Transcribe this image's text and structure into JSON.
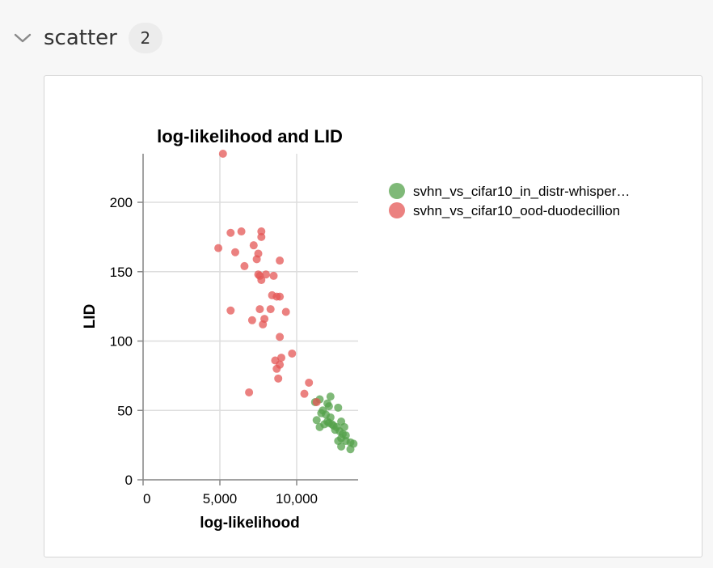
{
  "section": {
    "title": "scatter",
    "count": "2"
  },
  "chart_data": {
    "type": "scatter",
    "title": "log-likelihood and LID",
    "xlabel": "log-likelihood",
    "ylabel": "LID",
    "xlim": [
      0,
      14000
    ],
    "ylim": [
      0,
      235
    ],
    "xticks": [
      0,
      5000,
      10000
    ],
    "xtick_labels": [
      "0",
      "5,000",
      "10,000"
    ],
    "yticks": [
      0,
      50,
      100,
      150,
      200
    ],
    "ytick_labels": [
      "0",
      "50",
      "100",
      "150",
      "200"
    ],
    "grid": true,
    "legend_position": "right",
    "series": [
      {
        "name": "svhn_vs_cifar10_in_distr-whisper…",
        "color": "#54a24b",
        "points": [
          [
            11200,
            56
          ],
          [
            11500,
            58
          ],
          [
            12000,
            55
          ],
          [
            12200,
            60
          ],
          [
            11700,
            50
          ],
          [
            12100,
            53
          ],
          [
            12700,
            52
          ],
          [
            11600,
            48
          ],
          [
            11300,
            43
          ],
          [
            11800,
            40
          ],
          [
            12000,
            42
          ],
          [
            12300,
            40
          ],
          [
            12600,
            38
          ],
          [
            12900,
            42
          ],
          [
            12500,
            36
          ],
          [
            13100,
            38
          ],
          [
            12800,
            35
          ],
          [
            13000,
            33
          ],
          [
            12900,
            30
          ],
          [
            13200,
            28
          ],
          [
            12700,
            28
          ],
          [
            13500,
            27
          ],
          [
            13700,
            26
          ],
          [
            13500,
            22
          ],
          [
            12900,
            24
          ],
          [
            13200,
            32
          ],
          [
            11500,
            38
          ],
          [
            12200,
            45
          ],
          [
            11900,
            47
          ],
          [
            12100,
            41
          ],
          [
            12400,
            39
          ]
        ]
      },
      {
        "name": "svhn_vs_cifar10_ood-duodecillion",
        "color": "#e45756",
        "points": [
          [
            5200,
            235
          ],
          [
            5700,
            178
          ],
          [
            6400,
            179
          ],
          [
            7700,
            179
          ],
          [
            7700,
            175
          ],
          [
            4900,
            167
          ],
          [
            6000,
            164
          ],
          [
            7200,
            169
          ],
          [
            7500,
            163
          ],
          [
            7400,
            159
          ],
          [
            8900,
            158
          ],
          [
            6600,
            154
          ],
          [
            7500,
            148
          ],
          [
            7600,
            147
          ],
          [
            8000,
            148
          ],
          [
            8500,
            147
          ],
          [
            7700,
            144
          ],
          [
            8400,
            133
          ],
          [
            8900,
            132
          ],
          [
            8700,
            132
          ],
          [
            5700,
            122
          ],
          [
            7600,
            123
          ],
          [
            8300,
            123
          ],
          [
            9300,
            121
          ],
          [
            7100,
            115
          ],
          [
            7900,
            116
          ],
          [
            7800,
            112
          ],
          [
            8900,
            103
          ],
          [
            9700,
            91
          ],
          [
            9000,
            88
          ],
          [
            8600,
            86
          ],
          [
            8900,
            83
          ],
          [
            8700,
            80
          ],
          [
            8800,
            73
          ],
          [
            10800,
            70
          ],
          [
            6900,
            63
          ],
          [
            10500,
            62
          ],
          [
            11300,
            56
          ]
        ]
      }
    ]
  }
}
